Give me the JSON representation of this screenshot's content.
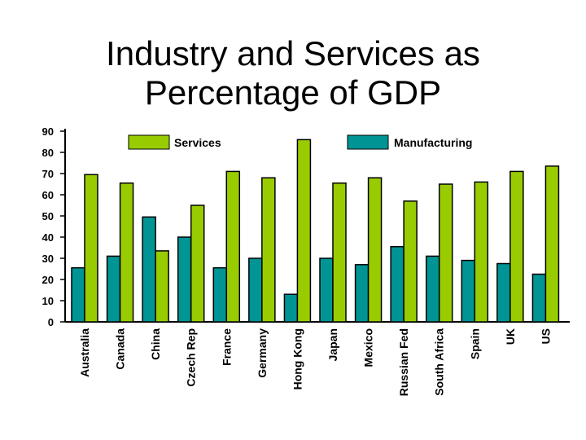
{
  "chart_data": {
    "type": "bar",
    "title_lines": [
      "Industry and Services as",
      "Percentage of GDP"
    ],
    "title": "Industry and Services as Percentage of GDP",
    "xlabel": "",
    "ylabel": "",
    "ylim": [
      0,
      90
    ],
    "yticks": [
      0,
      10,
      20,
      30,
      40,
      50,
      60,
      70,
      80,
      90
    ],
    "grid": false,
    "legend_position": "top",
    "categories": [
      "Australia",
      "Canada",
      "China",
      "Czech Rep",
      "France",
      "Germany",
      "Hong Kong",
      "Japan",
      "Mexico",
      "Russian Fed",
      "South Africa",
      "Spain",
      "UK",
      "US"
    ],
    "series": [
      {
        "name": "Manufacturing",
        "color": "#009494",
        "values": [
          25.5,
          31,
          49.5,
          40,
          25.5,
          30,
          13,
          30,
          27,
          35.5,
          31,
          29,
          27.5,
          22.5
        ]
      },
      {
        "name": "Services",
        "color": "#99cc00",
        "values": [
          69.5,
          65.5,
          33.5,
          55,
          71,
          68,
          86,
          65.5,
          68,
          57,
          65,
          66,
          71,
          73.5
        ]
      }
    ],
    "legend": [
      {
        "name": "Services",
        "color": "#99cc00"
      },
      {
        "name": "Manufacturing",
        "color": "#009494"
      }
    ]
  }
}
